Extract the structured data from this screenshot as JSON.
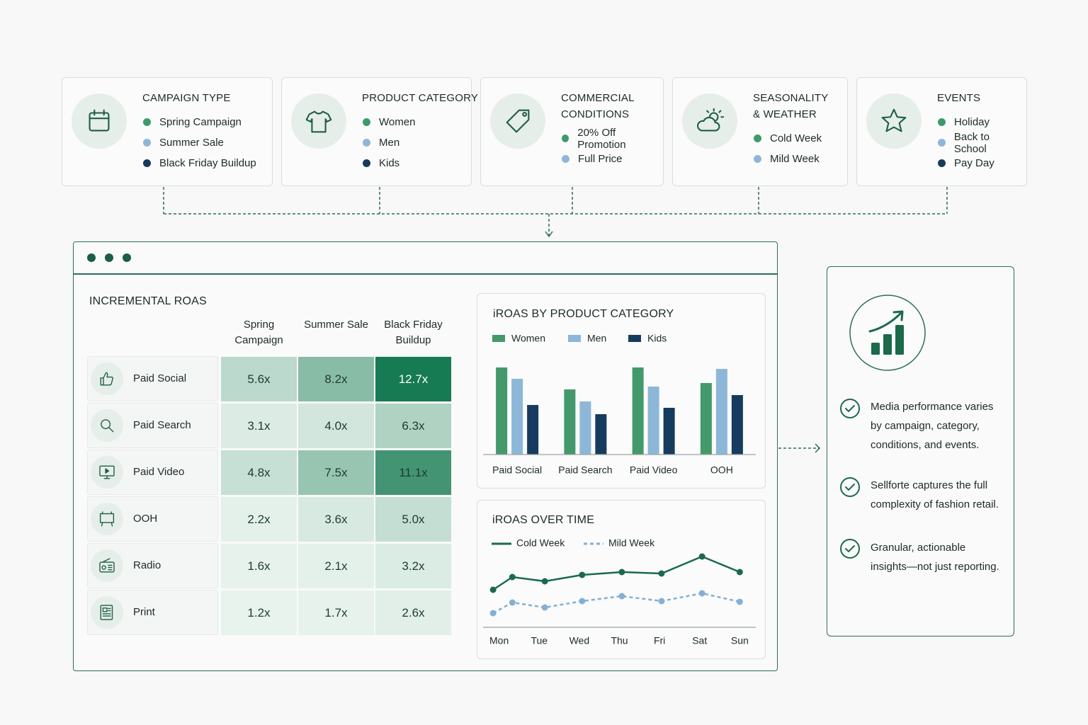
{
  "filters": [
    {
      "title": "CAMPAIGN TYPE",
      "items": [
        {
          "label": "Spring Campaign",
          "color": "#3d9a6b"
        },
        {
          "label": "Summer Sale",
          "color": "#8fb6d9"
        },
        {
          "label": "Black Friday Buildup",
          "color": "#173a5c"
        }
      ]
    },
    {
      "title": "PRODUCT CATEGORY",
      "items": [
        {
          "label": "Women",
          "color": "#3d9a6b"
        },
        {
          "label": "Men",
          "color": "#8fb6d9"
        },
        {
          "label": "Kids",
          "color": "#173a5c"
        }
      ]
    },
    {
      "title": "COMMERCIAL CONDITIONS",
      "items": [
        {
          "label": "20% Off Promotion",
          "color": "#3d9a6b"
        },
        {
          "label": "Full Price",
          "color": "#8fb6d9"
        }
      ]
    },
    {
      "title": "SEASONALITY & WEATHER",
      "items": [
        {
          "label": "Cold Week",
          "color": "#3d9a6b"
        },
        {
          "label": "Mild Week",
          "color": "#8fb6d9"
        }
      ]
    },
    {
      "title": "EVENTS",
      "items": [
        {
          "label": "Holiday",
          "color": "#3d9a6b"
        },
        {
          "label": "Back to School",
          "color": "#8fb6d9"
        },
        {
          "label": "Pay Day",
          "color": "#173a5c"
        }
      ]
    }
  ],
  "table": {
    "title": "INCREMENTAL ROAS",
    "columns": [
      "Spring Campaign",
      "Summer Sale",
      "Black Friday Buildup"
    ],
    "rows": [
      {
        "label": "Paid Social",
        "values": [
          5.6,
          8.2,
          12.7
        ],
        "value_labels": [
          "5.6x",
          "8.2x",
          "12.7x"
        ]
      },
      {
        "label": "Paid Search",
        "values": [
          3.1,
          4.0,
          6.3
        ],
        "value_labels": [
          "3.1x",
          "4.0x",
          "6.3x"
        ]
      },
      {
        "label": "Paid Video",
        "values": [
          4.8,
          7.5,
          11.1
        ],
        "value_labels": [
          "4.8x",
          "7.5x",
          "11.1x"
        ]
      },
      {
        "label": "OOH",
        "values": [
          2.2,
          3.6,
          5.0
        ],
        "value_labels": [
          "2.2x",
          "3.6x",
          "5.0x"
        ]
      },
      {
        "label": "Radio",
        "values": [
          1.6,
          2.1,
          3.2
        ],
        "value_labels": [
          "1.6x",
          "2.1x",
          "3.2x"
        ]
      },
      {
        "label": "Print",
        "values": [
          1.2,
          1.7,
          2.6
        ],
        "value_labels": [
          "1.2x",
          "1.7x",
          "2.6x"
        ]
      }
    ]
  },
  "chart_data": [
    {
      "type": "bar",
      "title": "iROAS BY PRODUCT CATEGORY",
      "categories": [
        "Paid Social",
        "Paid Search",
        "Paid Video",
        "OOH"
      ],
      "series": [
        {
          "name": "Women",
          "color": "#44996a",
          "values": [
            12.3,
            9.2,
            12.3,
            10.1
          ]
        },
        {
          "name": "Men",
          "color": "#8db7d8",
          "values": [
            10.7,
            7.5,
            9.6,
            12.1
          ]
        },
        {
          "name": "Kids",
          "color": "#173b5e",
          "values": [
            7.0,
            5.7,
            6.6,
            8.4
          ]
        }
      ],
      "ylim": [
        0,
        14
      ]
    },
    {
      "type": "line",
      "title": "iROAS OVER TIME",
      "x": [
        -0.15,
        0.33,
        1.14,
        2.07,
        3.06,
        4.05,
        5.06,
        6.0
      ],
      "xlim": [
        -0.4,
        6.4
      ],
      "xticks": [
        {
          "value": 0,
          "label": "Mon"
        },
        {
          "value": 1,
          "label": "Tue"
        },
        {
          "value": 2,
          "label": "Wed"
        },
        {
          "value": 3,
          "label": "Thu"
        },
        {
          "value": 4,
          "label": "Fri"
        },
        {
          "value": 5,
          "label": "Sat"
        },
        {
          "value": 6,
          "label": "Sun"
        }
      ],
      "ylim": [
        0,
        12
      ],
      "series": [
        {
          "name": "Cold Week",
          "color": "#1b6a4b",
          "line_style": "solid",
          "values": [
            5.3,
            7.1,
            6.5,
            7.4,
            7.8,
            7.6,
            10.0,
            7.8
          ]
        },
        {
          "name": "Mild Week",
          "color": "#86afd4",
          "line_style": "dashed",
          "values": [
            2.0,
            3.5,
            2.8,
            3.7,
            4.4,
            3.7,
            4.8,
            3.6
          ]
        }
      ]
    }
  ],
  "insights": [
    "Media performance varies by campaign, category, conditions, and events.",
    "Sellforte captures the full complexity of fashion retail.",
    "Granular, actionable insights—not just reporting."
  ]
}
